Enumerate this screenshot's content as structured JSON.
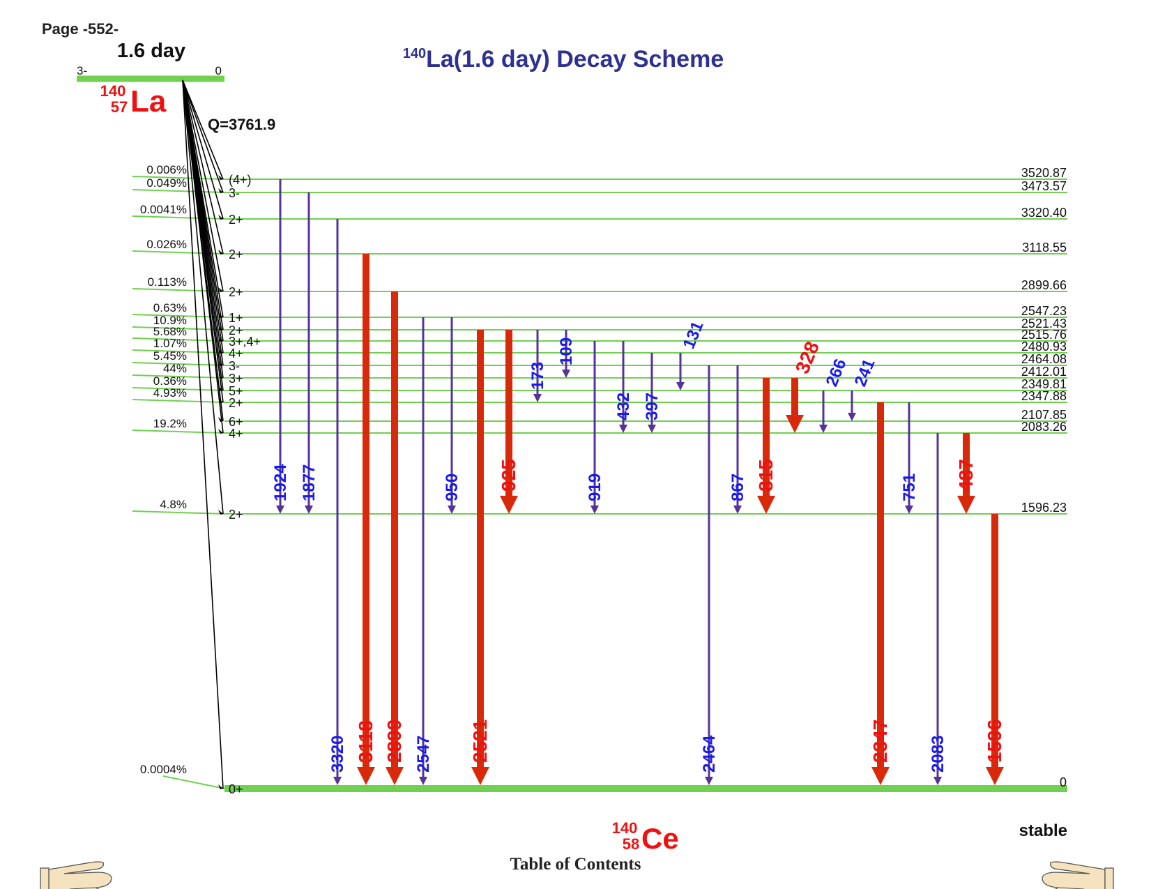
{
  "page_label": "Page -552-",
  "title": {
    "mass": "140",
    "text": "La(1.6 day) Decay Scheme"
  },
  "parent": {
    "halflife": "1.6 day",
    "spin": "3-",
    "energy": "0",
    "mass": "140",
    "z": "57",
    "symbol": "La",
    "q_value": "Q=3761.9"
  },
  "daughter": {
    "mass": "140",
    "z": "58",
    "symbol": "Ce",
    "stability": "stable"
  },
  "levels": [
    {
      "energy": "3520.87",
      "spin": "(4+)",
      "branch": "0.006%"
    },
    {
      "energy": "3473.57",
      "spin": "3-",
      "branch": "0.049%"
    },
    {
      "energy": "3320.40",
      "spin": "2+",
      "branch": "0.0041%"
    },
    {
      "energy": "3118.55",
      "spin": "2+",
      "branch": "0.026%"
    },
    {
      "energy": "2899.66",
      "spin": "2+",
      "branch": "0.113%"
    },
    {
      "energy": "2547.23",
      "spin": "1+",
      "branch": "0.63%"
    },
    {
      "energy": "2521.43",
      "spin": "2+",
      "branch": "10.9%"
    },
    {
      "energy": "2515.76",
      "spin": "3+,4+",
      "branch": "5.68%"
    },
    {
      "energy": "2480.93",
      "spin": "4+",
      "branch": "1.07%"
    },
    {
      "energy": "2464.08",
      "spin": "3-",
      "branch": "5.45%"
    },
    {
      "energy": "2412.01",
      "spin": "3+",
      "branch": "44%"
    },
    {
      "energy": "2349.81",
      "spin": "5+",
      "branch": "0.36%"
    },
    {
      "energy": "2347.88",
      "spin": "2+",
      "branch": "4.93%"
    },
    {
      "energy": "2107.85",
      "spin": "6+",
      "branch": ""
    },
    {
      "energy": "2083.26",
      "spin": "4+",
      "branch": "19.2%"
    },
    {
      "energy": "1596.23",
      "spin": "2+",
      "branch": "4.8%"
    },
    {
      "energy": "0",
      "spin": "0+",
      "branch": "0.0004%"
    }
  ],
  "gammas": [
    {
      "label": "1924",
      "from": "3520.87",
      "to": "1596.23",
      "strong": false
    },
    {
      "label": "1877",
      "from": "3473.57",
      "to": "1596.23",
      "strong": false
    },
    {
      "label": "3320",
      "from": "3320.40",
      "to": "0",
      "strong": false
    },
    {
      "label": "3118",
      "from": "3118.55",
      "to": "0",
      "strong": true
    },
    {
      "label": "2899",
      "from": "2899.66",
      "to": "0",
      "strong": true
    },
    {
      "label": "2547",
      "from": "2547.23",
      "to": "0",
      "strong": false
    },
    {
      "label": "950",
      "from": "2547.23",
      "to": "1596.23",
      "strong": false
    },
    {
      "label": "2521",
      "from": "2521.43",
      "to": "0",
      "strong": true
    },
    {
      "label": "925",
      "from": "2521.43",
      "to": "1596.23",
      "strong": true
    },
    {
      "label": "173",
      "from": "2521.43",
      "to": "2347.88",
      "strong": false
    },
    {
      "label": "109",
      "from": "2521.43",
      "to": "2412.01",
      "strong": false
    },
    {
      "label": "919",
      "from": "2515.76",
      "to": "1596.23",
      "strong": false
    },
    {
      "label": "432",
      "from": "2515.76",
      "to": "2083.26",
      "strong": false
    },
    {
      "label": "397",
      "from": "2480.93",
      "to": "2083.26",
      "strong": false
    },
    {
      "label": "131",
      "from": "2480.93",
      "to": "2349.81",
      "strong": false
    },
    {
      "label": "2464",
      "from": "2464.08",
      "to": "0",
      "strong": false
    },
    {
      "label": "867",
      "from": "2464.08",
      "to": "1596.23",
      "strong": false
    },
    {
      "label": "815",
      "from": "2412.01",
      "to": "1596.23",
      "strong": true
    },
    {
      "label": "328",
      "from": "2412.01",
      "to": "2083.26",
      "strong": true
    },
    {
      "label": "266",
      "from": "2349.81",
      "to": "2083.26",
      "strong": false
    },
    {
      "label": "241",
      "from": "2349.81",
      "to": "2107.85",
      "strong": false
    },
    {
      "label": "2347",
      "from": "2347.88",
      "to": "0",
      "strong": true
    },
    {
      "label": "751",
      "from": "2347.88",
      "to": "1596.23",
      "strong": false
    },
    {
      "label": "2083",
      "from": "2083.26",
      "to": "0",
      "strong": false
    },
    {
      "label": "487",
      "from": "2083.26",
      "to": "1596.23",
      "strong": true
    },
    {
      "label": "1596",
      "from": "1596.23",
      "to": "0",
      "strong": true
    }
  ],
  "colors": {
    "level_line": "#70d050",
    "weak_gamma": "#553399",
    "strong_gamma": "#d82a0a",
    "weak_label": "#1a1aee",
    "strong_label": "#ee1111",
    "title": "#2e3192",
    "nuclide": "#ee1111"
  },
  "navigation": {
    "toc": "Table of Contents",
    "prev_icon": "pointing-hand-left-icon",
    "next_icon": "pointing-hand-right-icon"
  }
}
